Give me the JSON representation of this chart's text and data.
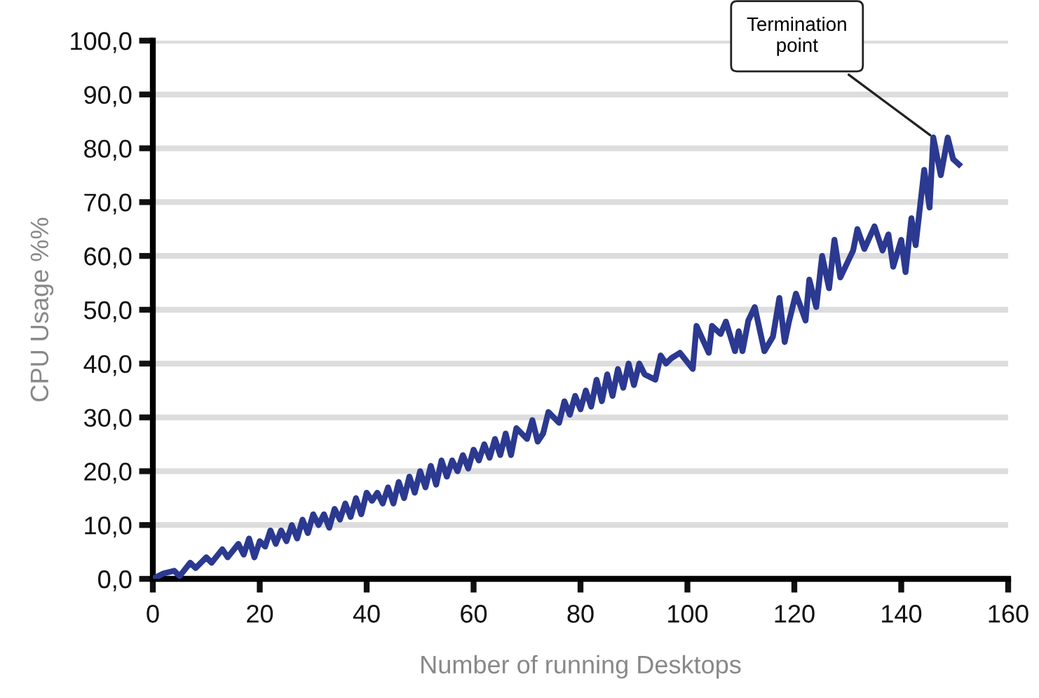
{
  "chart_data": {
    "type": "line",
    "xlabel": "Number of running Desktops",
    "ylabel": "CPU Usage %%",
    "xlim": [
      0,
      160
    ],
    "xticks": [
      0,
      20,
      40,
      60,
      80,
      100,
      120,
      140,
      160
    ],
    "ylim": [
      0,
      100
    ],
    "yticks": [
      {
        "value": 0,
        "label": "0,0"
      },
      {
        "value": 10,
        "label": "10,0"
      },
      {
        "value": 20,
        "label": "20,0"
      },
      {
        "value": 30,
        "label": "30,0"
      },
      {
        "value": 40,
        "label": "40,0"
      },
      {
        "value": 50,
        "label": "50,0"
      },
      {
        "value": 60,
        "label": "60,0"
      },
      {
        "value": 70,
        "label": "70,0"
      },
      {
        "value": 80,
        "label": "80,0"
      },
      {
        "value": 90,
        "label": "90,0"
      },
      {
        "value": 100,
        "label": "100,0"
      }
    ],
    "grid": "y",
    "legend": false,
    "marker": "none",
    "line_style": "solid",
    "annotations": [
      {
        "text": "Termination\npoint",
        "x": 146,
        "y": 82
      }
    ],
    "series": [
      {
        "color": "#2b3990",
        "x": [
          0,
          2,
          4,
          5,
          7,
          8,
          10,
          11,
          13,
          14,
          16,
          17,
          18,
          19,
          20,
          21,
          22,
          23,
          24,
          25,
          26,
          27,
          28,
          29,
          30,
          31,
          32,
          33,
          34,
          35,
          36,
          37,
          38,
          39,
          40,
          41,
          42,
          43,
          44,
          45,
          46,
          47,
          48,
          49,
          50,
          51,
          52,
          53,
          54,
          55,
          56,
          57,
          58,
          59,
          60,
          61,
          62,
          63,
          64,
          65,
          66,
          67,
          68,
          69,
          70,
          71,
          72,
          73,
          74,
          75,
          76,
          77,
          78,
          79,
          80,
          81,
          82,
          83,
          84,
          85,
          86,
          87,
          88,
          89,
          90,
          91,
          92,
          94,
          95,
          96,
          97,
          98.6,
          101,
          101.7,
          104,
          104.6,
          106.2,
          107.2,
          108.9,
          109.6,
          110.3,
          111.4,
          112.6,
          114.4,
          116,
          117.2,
          118.2,
          119,
          120.3,
          122.1,
          122.8,
          124.1,
          125.2,
          126.5,
          127.5,
          128.6,
          131,
          131.8,
          133.1,
          135,
          136.5,
          137.6,
          138.5,
          140,
          140.8,
          141.9,
          142.7,
          144.3,
          145.3,
          146,
          147.4,
          148.7,
          149.7,
          150.8
        ],
        "values": [
          0,
          1,
          1.5,
          0.5,
          3,
          2,
          4,
          3,
          5.5,
          4,
          6.5,
          4.5,
          7.5,
          4,
          7,
          6,
          9,
          6.5,
          9,
          7,
          10,
          7.5,
          11,
          8.5,
          12,
          10,
          12,
          9.5,
          13,
          11,
          14,
          11.5,
          15,
          12,
          16,
          14.5,
          16,
          14,
          17,
          14,
          18,
          15,
          19,
          16,
          20,
          17,
          21,
          17.5,
          22,
          19,
          22,
          20,
          23,
          20.5,
          24,
          22,
          25,
          22.5,
          26,
          23,
          27,
          23,
          28,
          27,
          26,
          29.5,
          25.5,
          27,
          31,
          30,
          29,
          33,
          30.5,
          34,
          31.5,
          35,
          32,
          37,
          33,
          38,
          34,
          39,
          35.5,
          40,
          36,
          40,
          38,
          37,
          41.5,
          40,
          41,
          42,
          39,
          47,
          42,
          47,
          45.5,
          47.8,
          42.3,
          46,
          42.3,
          48,
          50.5,
          42.3,
          45,
          52.2,
          44,
          47.8,
          53,
          48,
          55.6,
          50.5,
          60,
          54,
          63,
          56,
          61,
          65,
          61.3,
          65.5,
          61,
          64,
          58,
          63,
          57,
          67,
          62,
          76,
          69,
          82,
          75,
          82,
          78,
          77
        ]
      }
    ]
  }
}
